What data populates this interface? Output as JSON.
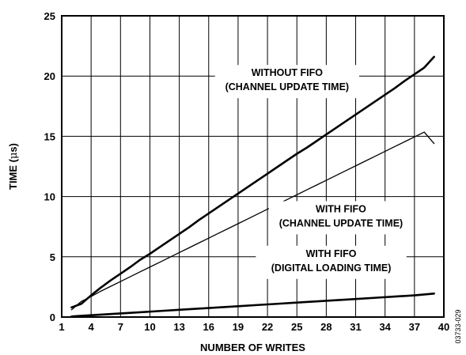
{
  "chart_data": {
    "type": "line",
    "xlabel": "NUMBER OF WRITES",
    "ylabel_prefix": "TIME (",
    "ylabel_unit": "μ",
    "ylabel_suffix": "s)",
    "xlim": [
      1,
      40
    ],
    "ylim": [
      0,
      25
    ],
    "x_ticks": [
      1,
      4,
      7,
      10,
      13,
      16,
      19,
      22,
      25,
      28,
      31,
      34,
      37,
      40
    ],
    "y_ticks": [
      0,
      5,
      10,
      15,
      20,
      25
    ],
    "grid": true,
    "series": [
      {
        "x": [
          2,
          3,
          4,
          5,
          6,
          7,
          8,
          9,
          10,
          11,
          12,
          13,
          14,
          15,
          16,
          17,
          18,
          19,
          20,
          21,
          22,
          23,
          24,
          25,
          26,
          27,
          28,
          29,
          30,
          31,
          32,
          33,
          34,
          35,
          36,
          37,
          38,
          39
        ],
        "values": [
          0.8,
          1.1,
          1.8,
          2.45,
          3.05,
          3.6,
          4.15,
          4.75,
          5.25,
          5.8,
          6.35,
          6.9,
          7.45,
          8.05,
          8.6,
          9.15,
          9.7,
          10.25,
          10.8,
          11.35,
          11.9,
          12.45,
          13.0,
          13.55,
          14.05,
          14.6,
          15.15,
          15.7,
          16.25,
          16.8,
          17.35,
          17.9,
          18.45,
          19.0,
          19.6,
          20.15,
          20.7,
          21.6
        ],
        "color": "#000000",
        "weight": "thick"
      },
      {
        "x": [
          2,
          3,
          4,
          5,
          6,
          7,
          8,
          9,
          10,
          11,
          12,
          13,
          14,
          15,
          16,
          17,
          18,
          19,
          20,
          21,
          22,
          23,
          24,
          25,
          26,
          27,
          28,
          29,
          30,
          31,
          32,
          33,
          34,
          35,
          36,
          37,
          38,
          39
        ],
        "values": [
          0.6,
          1.3,
          1.7,
          2.15,
          2.55,
          2.95,
          3.35,
          3.75,
          4.15,
          4.55,
          4.95,
          5.35,
          5.75,
          6.15,
          6.55,
          6.95,
          7.35,
          7.75,
          8.15,
          8.55,
          8.95,
          9.35,
          9.75,
          10.15,
          10.55,
          10.95,
          11.35,
          11.75,
          12.15,
          12.55,
          12.95,
          13.35,
          13.75,
          14.15,
          14.55,
          14.95,
          15.35,
          14.4
        ],
        "color": "#000000",
        "weight": "thin"
      },
      {
        "x": [
          2,
          3,
          5,
          7,
          9,
          11,
          13,
          15,
          17,
          19,
          21,
          23,
          25,
          27,
          29,
          31,
          33,
          35,
          37,
          39
        ],
        "values": [
          0.05,
          0.1,
          0.2,
          0.3,
          0.4,
          0.5,
          0.6,
          0.7,
          0.8,
          0.9,
          1.0,
          1.1,
          1.2,
          1.3,
          1.4,
          1.5,
          1.6,
          1.7,
          1.8,
          1.95
        ],
        "color": "#000000",
        "weight": "thick"
      }
    ],
    "annotations": [
      {
        "lines": [
          "WITHOUT FIFO",
          "(CHANNEL UPDATE TIME)"
        ],
        "at": [
          24,
          20.0
        ]
      },
      {
        "lines": [
          "WITH FIFO",
          "(CHANNEL UPDATE TIME)"
        ],
        "at": [
          29.5,
          8.7
        ]
      },
      {
        "lines": [
          "WITH FIFO",
          "(DIGITAL LOADING TIME)"
        ],
        "at": [
          28.5,
          5.0
        ]
      }
    ],
    "figure_id": "03733-029"
  }
}
